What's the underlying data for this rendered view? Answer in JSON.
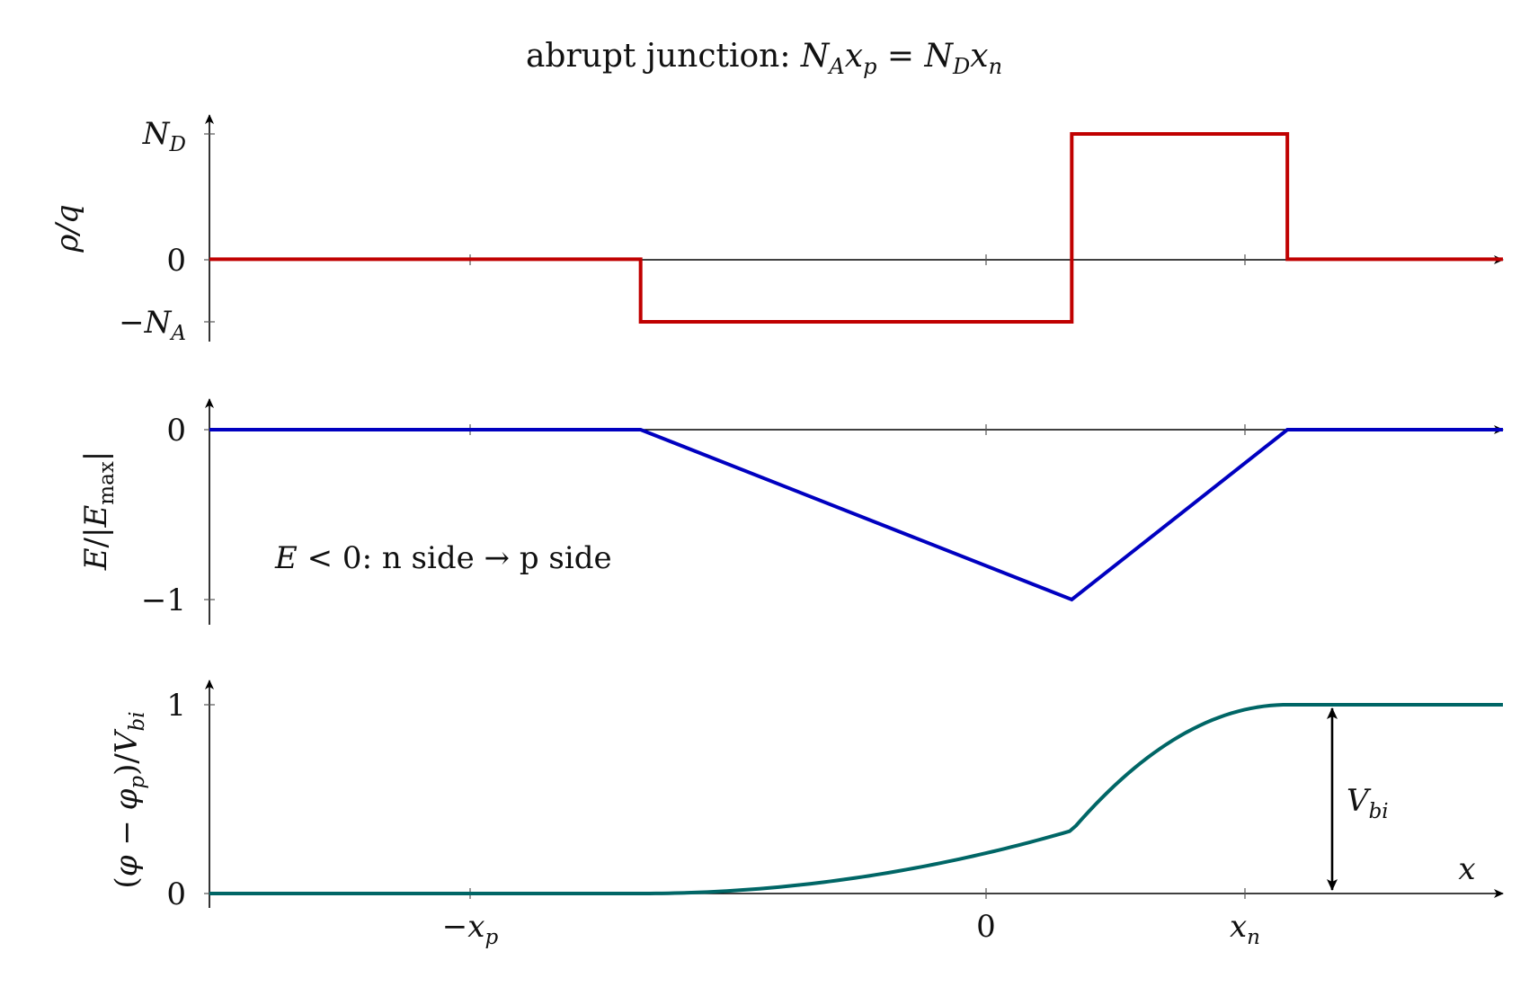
{
  "chart_data": {
    "title": "abrupt junction: N_A x_p = N_D x_n",
    "xlabel": "x",
    "x_ticks": [
      {
        "value": -1,
        "label": "−x_p"
      },
      {
        "value": 0,
        "label": "0"
      },
      {
        "value": 0.5,
        "label": "x_n"
      }
    ],
    "xlim": [
      -2,
      1
    ],
    "colors": {
      "rho": "#c00000",
      "field": "#0000c0",
      "potential": "#006666"
    },
    "panels": [
      {
        "id": "rho",
        "type": "line",
        "ylabel": "ρ/q",
        "ylim": [
          -0.5,
          1
        ],
        "y_ticks": [
          {
            "value": 1,
            "label": "N_D"
          },
          {
            "value": 0,
            "label": "0"
          },
          {
            "value": -0.5,
            "label": "−N_A"
          }
        ],
        "series": [
          {
            "x": [
              -2,
              -1,
              -1,
              0,
              0,
              0.5,
              0.5,
              1
            ],
            "y": [
              0,
              0,
              -0.5,
              -0.5,
              1,
              1,
              0,
              0
            ]
          }
        ]
      },
      {
        "id": "field",
        "type": "line",
        "ylabel": "E/|E_max|",
        "ylim": [
          -1,
          0
        ],
        "y_ticks": [
          {
            "value": 0,
            "label": "0"
          },
          {
            "value": -1,
            "label": "−1"
          }
        ],
        "annotation": {
          "math": "E < 0:",
          "text": "n side → p side"
        },
        "series": [
          {
            "x": [
              -2,
              -1,
              0,
              0.5,
              1
            ],
            "y": [
              0,
              0,
              -1,
              0,
              0
            ]
          }
        ]
      },
      {
        "id": "potential",
        "type": "line",
        "ylabel": "(φ − φ_p)/V_bi",
        "ylim": [
          0,
          1
        ],
        "y_ticks": [
          {
            "value": 1,
            "label": "1"
          },
          {
            "value": 0,
            "label": "0"
          }
        ],
        "annotation": {
          "label": "V_bi",
          "x": 0.7
        },
        "series": [
          {
            "x": [
              -2,
              -1,
              -0.75,
              -0.5,
              -0.25,
              0,
              0.125,
              0.25,
              0.375,
              0.5,
              1
            ],
            "y": [
              0,
              0,
              0.0208,
              0.0833,
              0.1875,
              0.3333,
              0.4896,
              0.6667,
              0.8646,
              1,
              1
            ]
          }
        ]
      }
    ]
  }
}
